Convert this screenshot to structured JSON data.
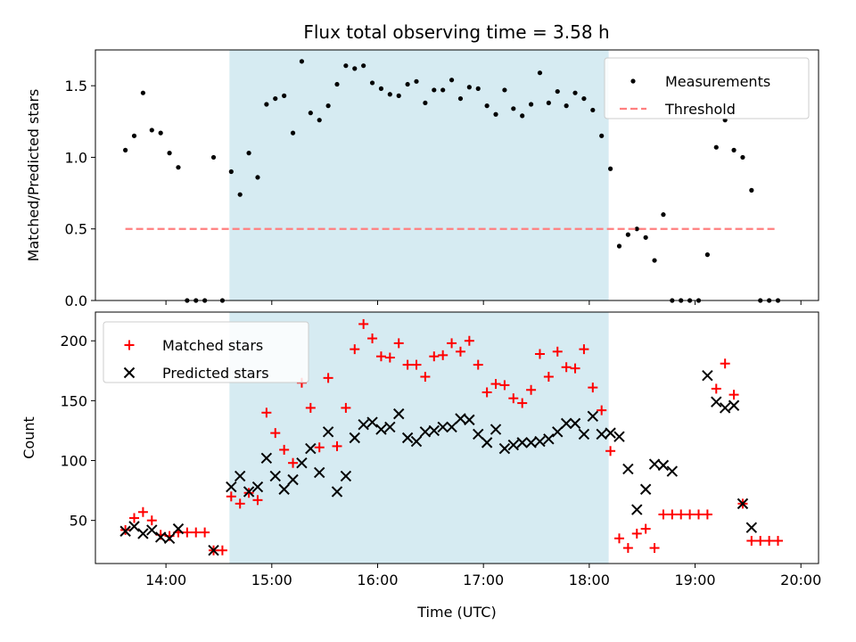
{
  "chart_data": [
    {
      "type": "scatter",
      "title": "Flux total observing time = 3.58 h",
      "xlabel": "",
      "ylabel": "Matched/Predicted stars",
      "xlim": [
        "13:20",
        "20:10"
      ],
      "ylim": [
        0,
        1.75
      ],
      "yticks": [
        0.0,
        0.5,
        1.0,
        1.5
      ],
      "ytick_labels": [
        "0.0",
        "0.5",
        "1.0",
        "1.5"
      ],
      "shaded_interval": [
        "14:36",
        "18:11"
      ],
      "shade_color": "#add8e6",
      "legend_position": "upper right",
      "series": [
        {
          "name": "Measurements",
          "marker": "dot",
          "color": "#000000",
          "x": [
            "13:37",
            "13:42",
            "13:47",
            "13:52",
            "13:57",
            "14:02",
            "14:07",
            "14:12",
            "14:17",
            "14:22",
            "14:27",
            "14:32",
            "14:37",
            "14:42",
            "14:47",
            "14:52",
            "14:57",
            "15:02",
            "15:07",
            "15:12",
            "15:17",
            "15:22",
            "15:27",
            "15:32",
            "15:37",
            "15:42",
            "15:47",
            "15:52",
            "15:57",
            "16:02",
            "16:07",
            "16:12",
            "16:17",
            "16:22",
            "16:27",
            "16:32",
            "16:37",
            "16:42",
            "16:47",
            "16:52",
            "16:57",
            "17:02",
            "17:07",
            "17:12",
            "17:17",
            "17:22",
            "17:27",
            "17:32",
            "17:37",
            "17:42",
            "17:47",
            "17:52",
            "17:57",
            "18:02",
            "18:07",
            "18:12",
            "18:17",
            "18:22",
            "18:27",
            "18:32",
            "18:37",
            "18:42",
            "18:47",
            "18:52",
            "18:57",
            "19:02",
            "19:07",
            "19:12",
            "19:17",
            "19:22",
            "19:27",
            "19:32",
            "19:37",
            "19:42",
            "19:47"
          ],
          "y": [
            1.05,
            1.15,
            1.45,
            1.19,
            1.17,
            1.03,
            0.93,
            0.0,
            0.0,
            0.0,
            1.0,
            0.0,
            0.9,
            0.74,
            1.03,
            0.86,
            1.37,
            1.41,
            1.43,
            1.17,
            1.67,
            1.31,
            1.26,
            1.36,
            1.51,
            1.64,
            1.62,
            1.64,
            1.52,
            1.48,
            1.44,
            1.43,
            1.51,
            1.53,
            1.38,
            1.47,
            1.47,
            1.54,
            1.41,
            1.49,
            1.48,
            1.36,
            1.3,
            1.47,
            1.34,
            1.29,
            1.37,
            1.59,
            1.38,
            1.46,
            1.36,
            1.45,
            1.41,
            1.33,
            1.15,
            0.92,
            0.38,
            0.46,
            0.5,
            0.44,
            0.28,
            0.6,
            0.0,
            0.0,
            0.0,
            0.0,
            0.32,
            1.07,
            1.26,
            1.05,
            1.0,
            0.77,
            0.0,
            0.0,
            0.0
          ]
        },
        {
          "name": "Threshold",
          "marker": "dashed-line",
          "color": "#ff7f7f",
          "x": [
            "13:37",
            "19:47"
          ],
          "y": [
            0.5,
            0.5
          ]
        }
      ]
    },
    {
      "type": "scatter",
      "title": "",
      "xlabel": "Time (UTC)",
      "ylabel": "Count",
      "xlim": [
        "13:20",
        "20:10"
      ],
      "ylim": [
        14,
        224
      ],
      "xticks": [
        "14:00",
        "15:00",
        "16:00",
        "17:00",
        "18:00",
        "19:00",
        "20:00"
      ],
      "yticks": [
        50,
        100,
        150,
        200
      ],
      "ytick_labels": [
        "50",
        "100",
        "150",
        "200"
      ],
      "shaded_interval": [
        "14:36",
        "18:11"
      ],
      "shade_color": "#add8e6",
      "legend_position": "upper left",
      "series": [
        {
          "name": "Matched stars",
          "marker": "plus",
          "color": "#ff0000",
          "x": [
            "13:37",
            "13:42",
            "13:47",
            "13:52",
            "13:57",
            "14:02",
            "14:07",
            "14:12",
            "14:17",
            "14:22",
            "14:27",
            "14:32",
            "14:37",
            "14:42",
            "14:47",
            "14:52",
            "14:57",
            "15:02",
            "15:07",
            "15:12",
            "15:17",
            "15:22",
            "15:27",
            "15:32",
            "15:37",
            "15:42",
            "15:47",
            "15:52",
            "15:57",
            "16:02",
            "16:07",
            "16:12",
            "16:17",
            "16:22",
            "16:27",
            "16:32",
            "16:37",
            "16:42",
            "16:47",
            "16:52",
            "16:57",
            "17:02",
            "17:07",
            "17:12",
            "17:17",
            "17:22",
            "17:27",
            "17:32",
            "17:37",
            "17:42",
            "17:47",
            "17:52",
            "17:57",
            "18:02",
            "18:07",
            "18:12",
            "18:17",
            "18:22",
            "18:27",
            "18:32",
            "18:37",
            "18:42",
            "18:47",
            "18:52",
            "18:57",
            "19:02",
            "19:07",
            "19:12",
            "19:17",
            "19:22",
            "19:27",
            "19:32",
            "19:37",
            "19:42",
            "19:47"
          ],
          "y": [
            42,
            52,
            57,
            50,
            38,
            37,
            40,
            40,
            40,
            40,
            25,
            25,
            70,
            64,
            73,
            67,
            140,
            123,
            109,
            98,
            165,
            144,
            111,
            169,
            112,
            144,
            193,
            214,
            202,
            187,
            186,
            198,
            180,
            180,
            170,
            187,
            188,
            198,
            191,
            200,
            180,
            157,
            164,
            163,
            152,
            148,
            159,
            189,
            170,
            191,
            178,
            177,
            193,
            161,
            142,
            108,
            35,
            27,
            39,
            43,
            27,
            55,
            55,
            55,
            55,
            55,
            55,
            160,
            181,
            155,
            64,
            33,
            33,
            33,
            33
          ]
        },
        {
          "name": "Predicted stars",
          "marker": "x",
          "color": "#000000",
          "x": [
            "13:37",
            "13:42",
            "13:47",
            "13:52",
            "13:57",
            "14:02",
            "14:07",
            "14:27",
            "14:37",
            "14:42",
            "14:47",
            "14:52",
            "14:57",
            "15:02",
            "15:07",
            "15:12",
            "15:17",
            "15:22",
            "15:27",
            "15:32",
            "15:37",
            "15:42",
            "15:47",
            "15:52",
            "15:57",
            "16:02",
            "16:07",
            "16:12",
            "16:17",
            "16:22",
            "16:27",
            "16:32",
            "16:37",
            "16:42",
            "16:47",
            "16:52",
            "16:57",
            "17:02",
            "17:07",
            "17:12",
            "17:17",
            "17:22",
            "17:27",
            "17:32",
            "17:37",
            "17:42",
            "17:47",
            "17:52",
            "17:57",
            "18:02",
            "18:07",
            "18:12",
            "18:17",
            "18:22",
            "18:27",
            "18:32",
            "18:37",
            "18:42",
            "18:47",
            "19:07",
            "19:12",
            "19:17",
            "19:22",
            "19:27",
            "19:32"
          ],
          "y": [
            41,
            45,
            39,
            42,
            36,
            35,
            43,
            25,
            78,
            87,
            74,
            78,
            102,
            87,
            76,
            84,
            98,
            110,
            90,
            124,
            74,
            87,
            119,
            130,
            132,
            126,
            128,
            139,
            119,
            116,
            124,
            125,
            128,
            128,
            135,
            134,
            122,
            115,
            126,
            110,
            113,
            115,
            115,
            116,
            118,
            124,
            131,
            131,
            122,
            137,
            122,
            123,
            120,
            93,
            59,
            76,
            97,
            96,
            91,
            171,
            149,
            144,
            146,
            64,
            44
          ]
        }
      ]
    }
  ]
}
